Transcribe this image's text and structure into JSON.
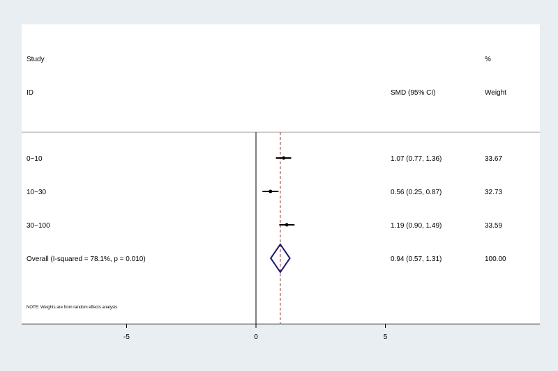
{
  "chart_data": {
    "type": "forest",
    "headers": {
      "study_top": "Study",
      "study_bottom": "ID",
      "effect": "SMD (95% CI)",
      "weight_top": "%",
      "weight_bottom": "Weight"
    },
    "studies": [
      {
        "label": "0~10",
        "estimate": 1.07,
        "lower": 0.77,
        "upper": 1.36,
        "ci_text": "1.07 (0.77, 1.36)",
        "weight": "33.67"
      },
      {
        "label": "10~30",
        "estimate": 0.56,
        "lower": 0.25,
        "upper": 0.87,
        "ci_text": "0.56 (0.25, 0.87)",
        "weight": "32.73"
      },
      {
        "label": "30~100",
        "estimate": 1.19,
        "lower": 0.9,
        "upper": 1.49,
        "ci_text": "1.19 (0.90, 1.49)",
        "weight": "33.59"
      }
    ],
    "overall": {
      "label": "Overall  (I-squared = 78.1%, p = 0.010)",
      "estimate": 0.94,
      "lower": 0.57,
      "upper": 1.31,
      "ci_text": "0.94 (0.57, 1.31)",
      "weight": "100.00"
    },
    "note": "NOTE: Weights are from random effects analysis",
    "x_ticks": [
      -5,
      0,
      5
    ],
    "colors": {
      "diamond": "#1a1a6e",
      "overall_line": "#8b2a2a",
      "background": "#e8eef1"
    }
  }
}
